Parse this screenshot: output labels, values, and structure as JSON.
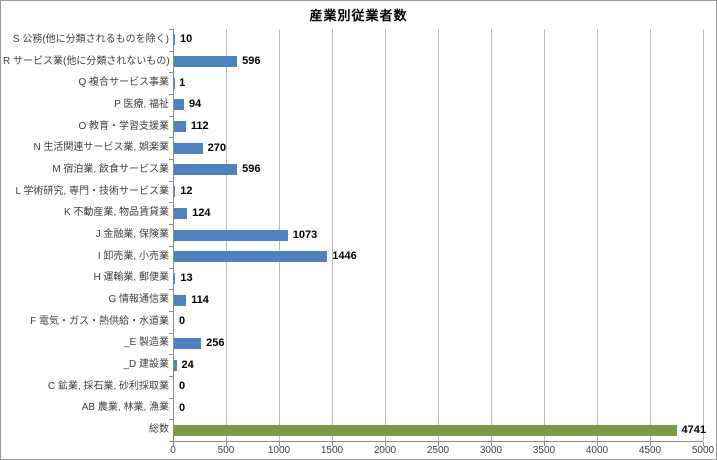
{
  "window": {
    "title": "産業別従業者数"
  },
  "colors": {
    "bar_blue": "#4f81bd",
    "bar_green": "#7a9a43",
    "gridline": "#bdbdbd",
    "axis": "#8c8c8c",
    "label_text": "#3f3f3f",
    "value_text": "#000000",
    "background": "#ffffff"
  },
  "chart_data": {
    "type": "bar",
    "orientation": "horizontal",
    "title": "産業別従業者数",
    "xlabel": "",
    "ylabel": "",
    "xlim": [
      0,
      5000
    ],
    "x_ticks": [
      0,
      500,
      1000,
      1500,
      2000,
      2500,
      3000,
      3500,
      4000,
      4500,
      5000
    ],
    "grid": true,
    "legend": "none",
    "value_labels": true,
    "categories": [
      "S 公務(他に分類されるものを除く)",
      "R サービス業(他に分類されないもの)",
      "Q 複合サービス事業",
      "P 医療, 福祉",
      "O 教育・学習支援業",
      "N 生活関連サービス業, 娯楽業",
      "M 宿泊業, 飲食サービス業",
      "L 学術研究, 専門・技術サービス業",
      "K 不動産業, 物品賃貸業",
      "J 金融業, 保険業",
      "I 卸売業, 小売業",
      "H 運輸業, 郵便業",
      "G 情報通信業",
      "F 電気・ガス・熱供給・水道業",
      "_E 製造業",
      "_D 建設業",
      "C 鉱業, 採石業, 砂利採取業",
      "AB 農業, 林業, 漁業",
      "総数"
    ],
    "values": [
      10,
      596,
      1,
      94,
      112,
      270,
      596,
      12,
      124,
      1073,
      1446,
      13,
      114,
      0,
      256,
      24,
      0,
      0,
      4741
    ],
    "bar_color_default": "#4f81bd",
    "special_bars": {
      "総数": "#7a9a43"
    }
  }
}
